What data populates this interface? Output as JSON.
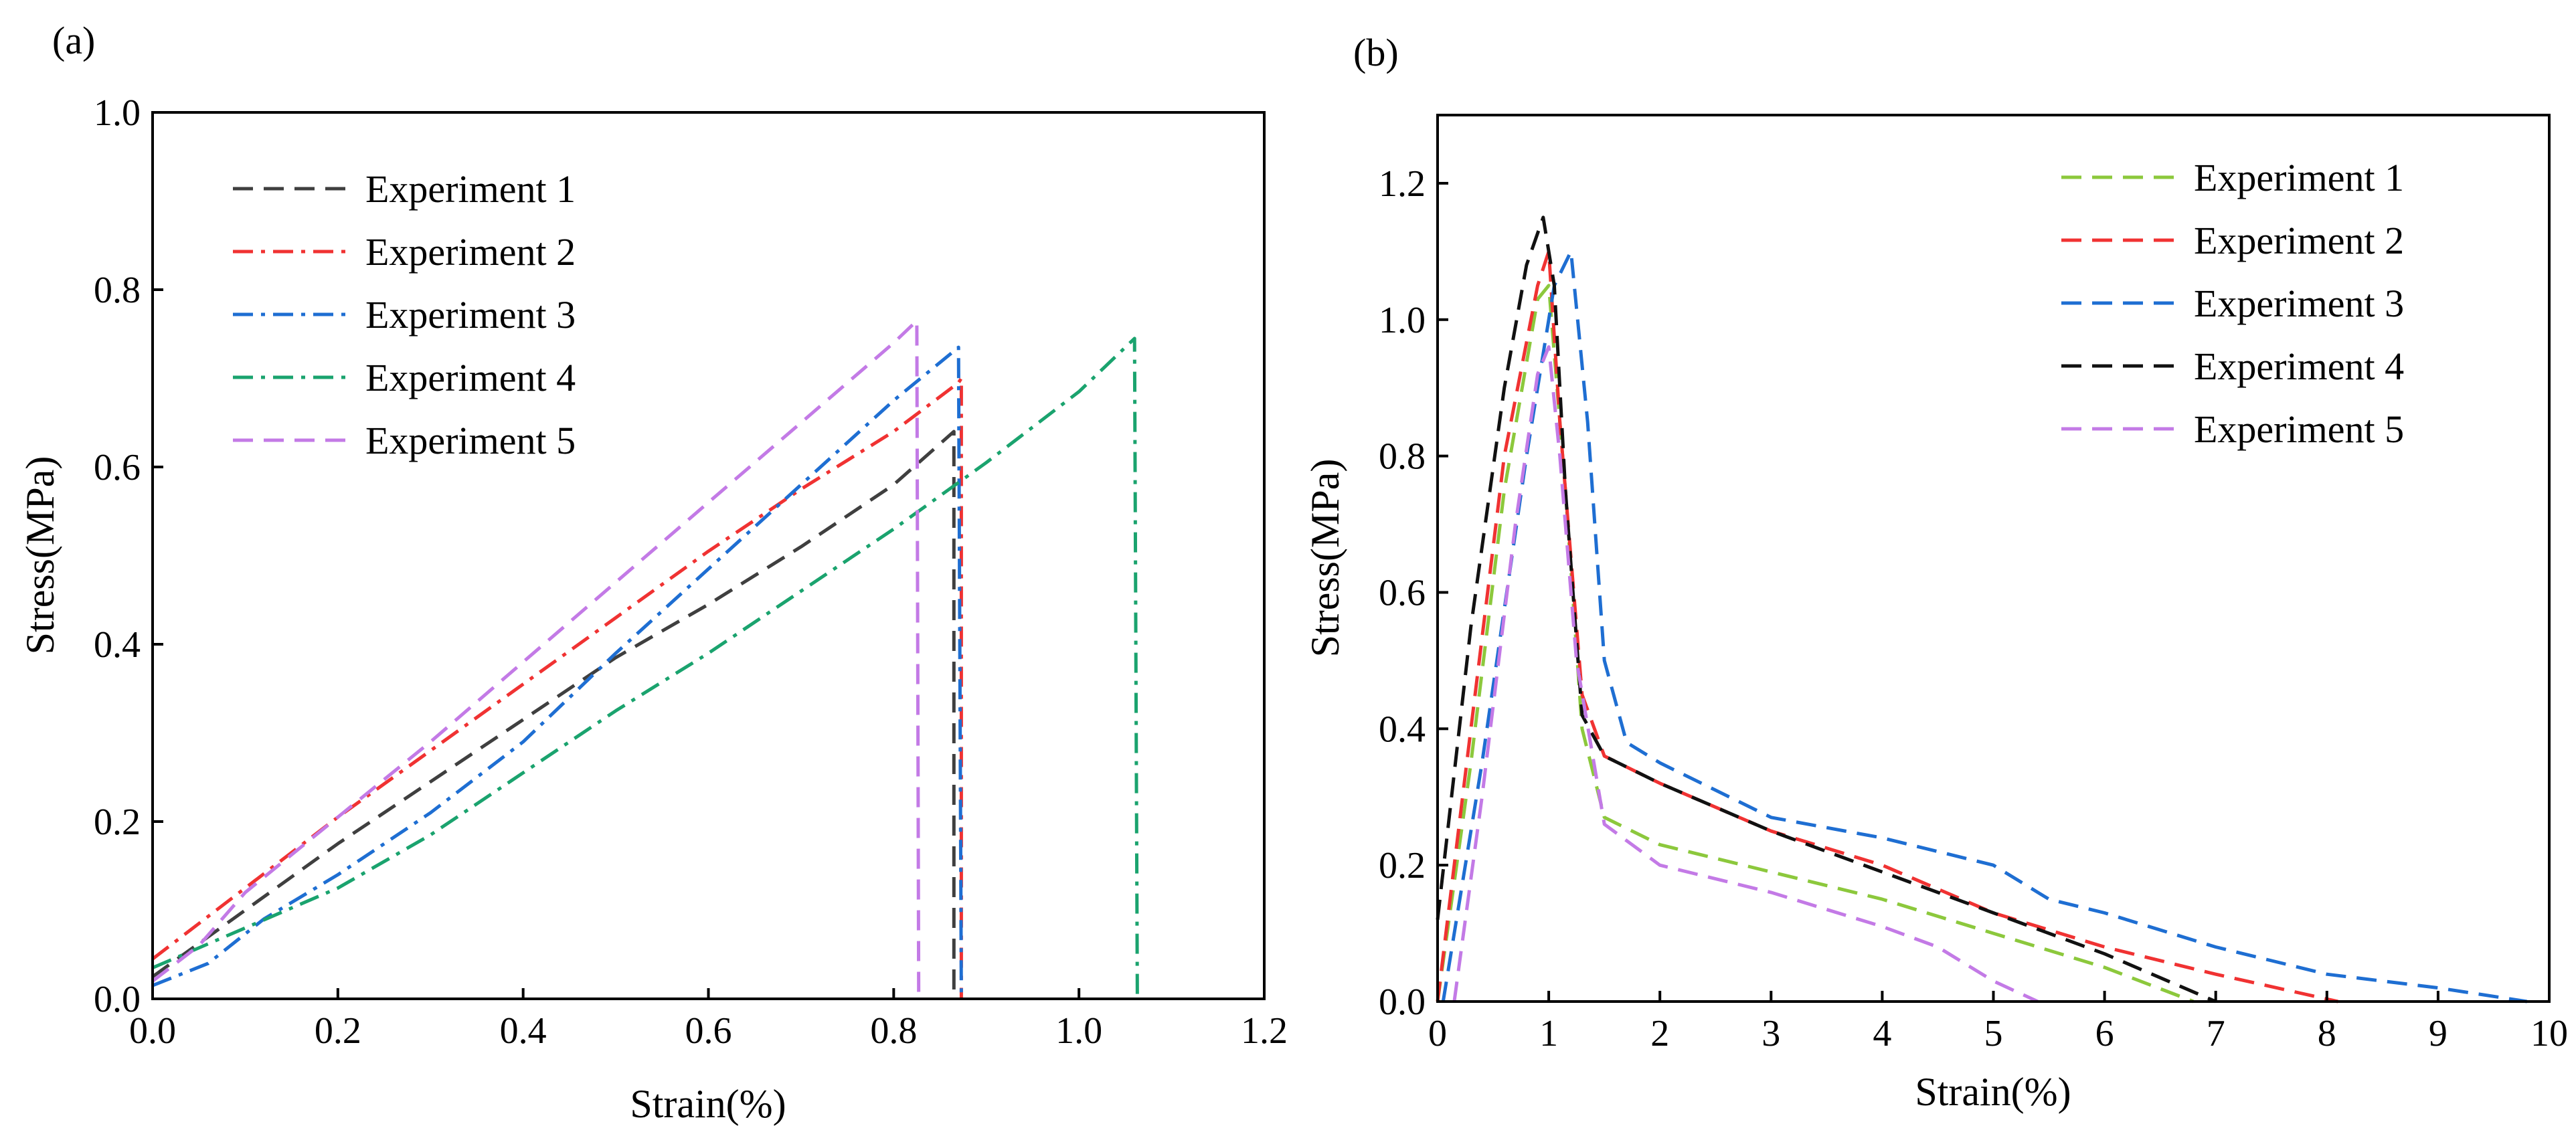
{
  "chart_data": [
    {
      "type": "line",
      "panel_label": "(a)",
      "title": "",
      "xlabel": "Strain(%)",
      "ylabel": "Stress(MPa)",
      "xlim": [
        0.0,
        1.2
      ],
      "ylim": [
        0.0,
        1.0
      ],
      "xticks": [
        "0.0",
        "0.2",
        "0.4",
        "0.6",
        "0.8",
        "1.0",
        "1.2"
      ],
      "yticks": [
        "0.0",
        "0.2",
        "0.4",
        "0.6",
        "0.8",
        "1.0"
      ],
      "legend_position": "top-left",
      "grid": false,
      "series": [
        {
          "name": "Experiment 1",
          "color": "#3f3f3f",
          "dash": "dash",
          "x": [
            0.0,
            0.1,
            0.2,
            0.3,
            0.4,
            0.5,
            0.6,
            0.7,
            0.8,
            0.865,
            0.865
          ],
          "y": [
            0.025,
            0.1,
            0.175,
            0.245,
            0.315,
            0.385,
            0.445,
            0.51,
            0.58,
            0.64,
            0.0
          ]
        },
        {
          "name": "Experiment 2",
          "color": "#f03232",
          "dash": "dashdot",
          "x": [
            0.0,
            0.1,
            0.2,
            0.3,
            0.4,
            0.5,
            0.6,
            0.7,
            0.8,
            0.87,
            0.873,
            0.873
          ],
          "y": [
            0.045,
            0.125,
            0.205,
            0.28,
            0.355,
            0.43,
            0.505,
            0.575,
            0.64,
            0.695,
            0.7,
            0.0
          ]
        },
        {
          "name": "Experiment 3",
          "color": "#1e6ed2",
          "dash": "dashdot",
          "x": [
            0.0,
            0.06,
            0.12,
            0.2,
            0.3,
            0.4,
            0.5,
            0.6,
            0.7,
            0.8,
            0.87,
            0.873
          ],
          "y": [
            0.015,
            0.04,
            0.09,
            0.14,
            0.21,
            0.29,
            0.39,
            0.485,
            0.58,
            0.675,
            0.735,
            0.0
          ]
        },
        {
          "name": "Experiment 4",
          "color": "#1aa36e",
          "dash": "dashdot",
          "x": [
            0.0,
            0.1,
            0.2,
            0.3,
            0.4,
            0.5,
            0.6,
            0.7,
            0.8,
            0.9,
            1.0,
            1.06,
            1.063
          ],
          "y": [
            0.035,
            0.08,
            0.125,
            0.185,
            0.255,
            0.325,
            0.39,
            0.46,
            0.53,
            0.605,
            0.685,
            0.745,
            0.0
          ]
        },
        {
          "name": "Experiment 5",
          "color": "#c37ae6",
          "dash": "dash",
          "x": [
            0.0,
            0.05,
            0.1,
            0.2,
            0.3,
            0.4,
            0.5,
            0.6,
            0.7,
            0.8,
            0.825,
            0.827
          ],
          "y": [
            0.02,
            0.06,
            0.12,
            0.205,
            0.29,
            0.38,
            0.47,
            0.56,
            0.65,
            0.74,
            0.765,
            0.0
          ]
        }
      ]
    },
    {
      "type": "line",
      "panel_label": "(b)",
      "title": "",
      "xlabel": "Strain(%)",
      "ylabel": "Stress(MPa)",
      "xlim": [
        0,
        10
      ],
      "ylim": [
        0.0,
        1.3
      ],
      "xticks": [
        "0",
        "1",
        "2",
        "3",
        "4",
        "5",
        "6",
        "7",
        "8",
        "9",
        "10"
      ],
      "yticks": [
        "0.0",
        "0.2",
        "0.4",
        "0.6",
        "0.8",
        "1.0",
        "1.2"
      ],
      "legend_position": "top-right",
      "grid": false,
      "series": [
        {
          "name": "Experiment 1",
          "color": "#8cc83c",
          "dash": "dash",
          "x": [
            0.0,
            0.3,
            0.6,
            0.9,
            1.0,
            1.15,
            1.3,
            1.5,
            2.0,
            3.0,
            4.0,
            5.0,
            6.0,
            6.8
          ],
          "y": [
            0.0,
            0.35,
            0.75,
            1.03,
            1.05,
            0.75,
            0.4,
            0.27,
            0.23,
            0.19,
            0.15,
            0.1,
            0.05,
            0.0
          ]
        },
        {
          "name": "Experiment 2",
          "color": "#f03232",
          "dash": "dash",
          "x": [
            0.0,
            0.3,
            0.6,
            0.9,
            1.0,
            1.1,
            1.3,
            1.5,
            2.0,
            3.0,
            4.0,
            5.0,
            6.0,
            7.0,
            8.1
          ],
          "y": [
            0.0,
            0.4,
            0.8,
            1.05,
            1.1,
            0.85,
            0.45,
            0.36,
            0.32,
            0.25,
            0.2,
            0.13,
            0.08,
            0.04,
            0.0
          ]
        },
        {
          "name": "Experiment 3",
          "color": "#1e6ed2",
          "dash": "dash",
          "x": [
            0.05,
            0.4,
            0.8,
            1.05,
            1.2,
            1.35,
            1.5,
            1.7,
            2.0,
            3.0,
            4.0,
            5.0,
            5.5,
            6.0,
            7.0,
            8.0,
            9.0,
            9.8
          ],
          "y": [
            0.0,
            0.35,
            0.8,
            1.05,
            1.1,
            0.85,
            0.5,
            0.38,
            0.35,
            0.27,
            0.24,
            0.2,
            0.15,
            0.13,
            0.08,
            0.04,
            0.02,
            0.0
          ]
        },
        {
          "name": "Experiment 4",
          "color": "#111111",
          "dash": "dash",
          "x": [
            0.0,
            0.3,
            0.6,
            0.8,
            0.95,
            1.05,
            1.15,
            1.3,
            1.5,
            2.0,
            3.0,
            4.0,
            5.0,
            6.0,
            7.0
          ],
          "y": [
            0.12,
            0.55,
            0.9,
            1.08,
            1.15,
            1.05,
            0.75,
            0.42,
            0.36,
            0.32,
            0.25,
            0.19,
            0.13,
            0.07,
            0.0
          ]
        },
        {
          "name": "Experiment 5",
          "color": "#c37ae6",
          "dash": "dash",
          "x": [
            0.15,
            0.4,
            0.7,
            0.9,
            1.0,
            1.1,
            1.25,
            1.5,
            2.0,
            3.0,
            4.0,
            4.5,
            5.0,
            5.4
          ],
          "y": [
            0.0,
            0.3,
            0.7,
            0.92,
            0.96,
            0.8,
            0.5,
            0.26,
            0.2,
            0.16,
            0.11,
            0.08,
            0.03,
            0.0
          ]
        }
      ]
    }
  ]
}
